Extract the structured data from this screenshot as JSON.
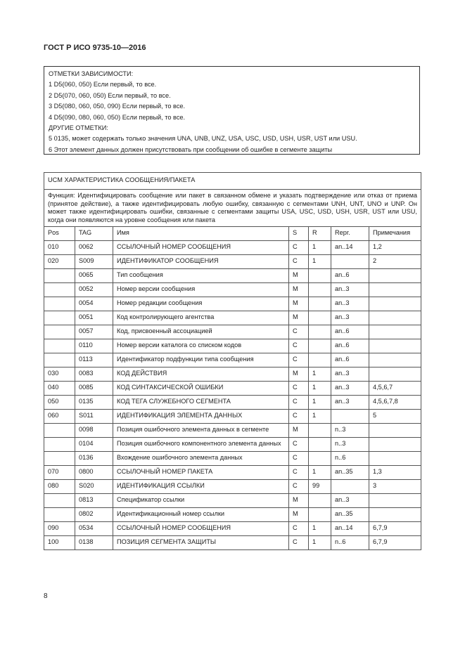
{
  "header": {
    "title": "ГОСТ Р ИСО 9735-10—2016"
  },
  "notes": [
    "ОТМЕТКИ ЗАВИСИМОСТИ:",
    "1 D5(060, 050) Если первый, то все.",
    "2 D5(070, 060, 050) Если первый, то все.",
    "3 D5(080, 060, 050, 090) Если первый, то все.",
    "4 D5(090, 080, 060, 050) Если первый, то все.",
    "ДРУГИЕ ОТМЕТКИ:",
    "5 0135, может содержать только значения UNA, UNB, UNZ, USA, USC, USD, USH, USR, UST или USU.",
    "6 Этот элемент данных должен присутствовать при сообщении об ошибке в сегменте защиты"
  ],
  "segment": {
    "title": "UCM ХАРАКТЕРИСТИКА СООБЩЕНИЯ/ПАКЕТА",
    "function": "Функция: Идентифицировать сообщение или пакет в связанном обмене и указать подтверждение или отказ от приема (принятое действие), а также идентифицировать любую ошибку, связанную с сегментами UNH, UNT, UNO и UNP. Он может также идентифицировать ошибки, связанные с сегментами защиты USA, USC, USD, USH, USR, UST или USU, когда они появляются на уровне сообщения или пакета",
    "columns": [
      "Pos",
      "TAG",
      "Имя",
      "S",
      "R",
      "Repr.",
      "Примечания"
    ],
    "rows": [
      [
        "010",
        "0062",
        "ССЫЛОЧНЫЙ НОМЕР СООБЩЕНИЯ",
        "C",
        "1",
        "an..14",
        "1,2"
      ],
      [
        "020",
        "S009",
        "ИДЕНТИФИКАТОР СООБЩЕНИЯ",
        "C",
        "1",
        "",
        "2"
      ],
      [
        "",
        "0065",
        "Тип сообщения",
        "M",
        "",
        "an..6",
        ""
      ],
      [
        "",
        "0052",
        "Номер версии сообщения",
        "M",
        "",
        "an..3",
        ""
      ],
      [
        "",
        "0054",
        "Номер редакции сообщения",
        "M",
        "",
        "an..3",
        ""
      ],
      [
        "",
        "0051",
        "Код контролирующего агентства",
        "M",
        "",
        "an..3",
        ""
      ],
      [
        "",
        "0057",
        "Код, присвоенный ассоциацией",
        "C",
        "",
        "an..6",
        ""
      ],
      [
        "",
        "0110",
        "Номер версии каталога со списком кодов",
        "C",
        "",
        "an..6",
        ""
      ],
      [
        "",
        "0113",
        "Идентификатор подфункции типа сообщения",
        "C",
        "",
        "an..6",
        ""
      ],
      [
        "030",
        "0083",
        "КОД ДЕЙСТВИЯ",
        "M",
        "1",
        "an..3",
        ""
      ],
      [
        "040",
        "0085",
        "КОД СИНТАКСИЧЕСКОЙ ОШИБКИ",
        "C",
        "1",
        "an..3",
        "4,5,6,7"
      ],
      [
        "050",
        "0135",
        "КОД ТЕГА СЛУЖЕБНОГО СЕГМЕНТА",
        "C",
        "1",
        "an..3",
        "4,5,6,7,8"
      ],
      [
        "060",
        "S011",
        "ИДЕНТИФИКАЦИЯ ЭЛЕМЕНТА ДАННЫХ",
        "C",
        "1",
        "",
        "5"
      ],
      [
        "",
        "0098",
        "Позиция ошибочного элемента данных в сегменте",
        "M",
        "",
        "n..3",
        ""
      ],
      [
        "",
        "0104",
        "Позиция ошибочного компонентного элемента данных",
        "C",
        "",
        "n..3",
        ""
      ],
      [
        "",
        "0136",
        "Вхождение ошибочного элемента данных",
        "C",
        "",
        "n..6",
        ""
      ],
      [
        "070",
        "0800",
        "ССЫЛОЧНЫЙ НОМЕР ПАКЕТА",
        "C",
        "1",
        "an..35",
        "1,3"
      ],
      [
        "080",
        "S020",
        "ИДЕНТИФИКАЦИЯ ССЫЛКИ",
        "C",
        "99",
        "",
        "3"
      ],
      [
        "",
        "0813",
        "Спецификатор ссылки",
        "M",
        "",
        "an..3",
        ""
      ],
      [
        "",
        "0802",
        "Идентификационный номер ссылки",
        "M",
        "",
        "an..35",
        ""
      ],
      [
        "090",
        "0534",
        "ССЫЛОЧНЫЙ НОМЕР СООБЩЕНИЯ",
        "C",
        "1",
        "an..14",
        "6,7,9"
      ],
      [
        "100",
        "0138",
        "ПОЗИЦИЯ СЕГМЕНТА ЗАЩИТЫ",
        "C",
        "1",
        "n..6",
        "6,7,9"
      ]
    ]
  },
  "footer": {
    "page_number": "8"
  }
}
